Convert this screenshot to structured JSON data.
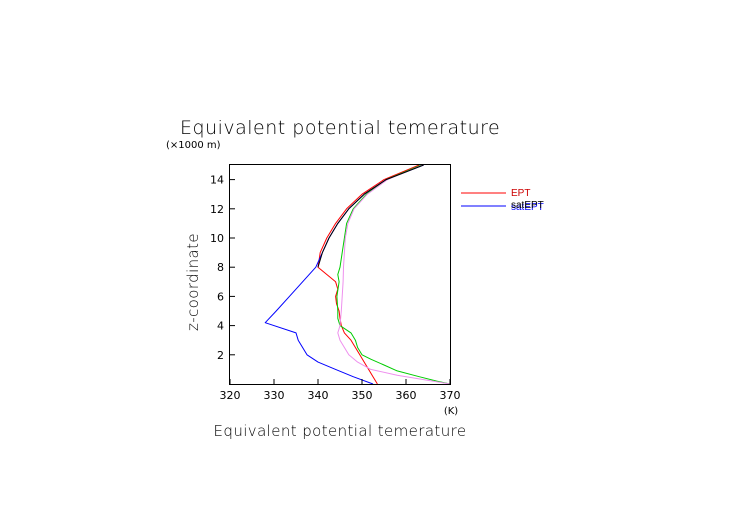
{
  "chart_data": {
    "type": "line",
    "title": "Equivalent potential temerature",
    "xlabel": "Equivalent potential temerature",
    "x_unit": "(K)",
    "ylabel": "z-coordinate",
    "y_unit": "(×1000 m)",
    "xlim": [
      320,
      370
    ],
    "ylim": [
      0,
      15
    ],
    "x_ticks": [
      320,
      330,
      340,
      350,
      360,
      370
    ],
    "y_ticks": [
      2,
      4,
      6,
      8,
      10,
      12,
      14
    ],
    "grid": false,
    "legend_placement": "right",
    "legend": [
      {
        "label": "EPT",
        "color": "#ff0000"
      },
      {
        "label": "satEPT",
        "color": "#0000ff"
      },
      {
        "label": "satEPT",
        "color": "#000000"
      }
    ],
    "series": [
      {
        "name": "EPT",
        "color": "#ff0000",
        "points": [
          [
            353.5,
            0.0
          ],
          [
            352.5,
            0.5
          ],
          [
            351.5,
            1.0
          ],
          [
            350.5,
            1.5
          ],
          [
            349.5,
            2.0
          ],
          [
            348.5,
            2.5
          ],
          [
            347.5,
            3.0
          ],
          [
            346.0,
            3.5
          ],
          [
            345.3,
            4.0
          ],
          [
            345.0,
            4.5
          ],
          [
            344.8,
            5.0
          ],
          [
            344.2,
            5.5
          ],
          [
            344.0,
            6.0
          ],
          [
            344.5,
            6.5
          ],
          [
            344.0,
            7.0
          ],
          [
            342.0,
            7.5
          ],
          [
            340.0,
            8.0
          ],
          [
            340.5,
            9.0
          ],
          [
            342.0,
            10.0
          ],
          [
            344.0,
            11.0
          ],
          [
            346.5,
            12.0
          ],
          [
            350.0,
            13.0
          ],
          [
            355.0,
            14.0
          ],
          [
            363.0,
            15.0
          ]
        ]
      },
      {
        "name": "satEPT",
        "color": "#0000ff",
        "points": [
          [
            352.5,
            0.0
          ],
          [
            348.0,
            0.5
          ],
          [
            344.0,
            1.0
          ],
          [
            340.0,
            1.5
          ],
          [
            337.5,
            2.0
          ],
          [
            336.5,
            2.5
          ],
          [
            335.5,
            3.0
          ],
          [
            335.0,
            3.5
          ],
          [
            328.0,
            4.2
          ],
          [
            330.5,
            5.0
          ],
          [
            333.5,
            6.0
          ],
          [
            336.5,
            7.0
          ],
          [
            339.5,
            8.0
          ],
          [
            341.0,
            9.0
          ],
          [
            342.5,
            10.0
          ],
          [
            344.5,
            11.0
          ],
          [
            347.0,
            12.0
          ],
          [
            350.5,
            13.0
          ],
          [
            355.5,
            14.0
          ],
          [
            364.0,
            15.0
          ]
        ]
      },
      {
        "name": "",
        "color": "#00cc00",
        "points": [
          [
            370.0,
            0.0
          ],
          [
            367.0,
            0.2
          ],
          [
            363.0,
            0.5
          ],
          [
            358.0,
            0.9
          ],
          [
            355.0,
            1.3
          ],
          [
            352.0,
            1.7
          ],
          [
            350.0,
            2.0
          ],
          [
            349.0,
            2.5
          ],
          [
            348.5,
            3.0
          ],
          [
            347.5,
            3.5
          ],
          [
            345.0,
            4.0
          ],
          [
            344.5,
            4.5
          ],
          [
            344.5,
            5.0
          ],
          [
            344.3,
            6.0
          ],
          [
            344.8,
            7.0
          ],
          [
            344.5,
            7.5
          ],
          [
            345.0,
            8.0
          ],
          [
            345.5,
            9.0
          ],
          [
            346.0,
            10.0
          ],
          [
            346.5,
            11.0
          ],
          [
            348.0,
            12.0
          ],
          [
            351.0,
            13.0
          ],
          [
            355.5,
            14.0
          ],
          [
            363.5,
            15.0
          ]
        ]
      },
      {
        "name": "",
        "color": "#ee90ee",
        "points": [
          [
            370.0,
            0.0
          ],
          [
            364.0,
            0.3
          ],
          [
            358.0,
            0.6
          ],
          [
            352.0,
            1.0
          ],
          [
            349.0,
            1.5
          ],
          [
            347.0,
            2.0
          ],
          [
            346.0,
            2.5
          ],
          [
            345.0,
            3.0
          ],
          [
            344.5,
            3.5
          ],
          [
            345.0,
            4.0
          ],
          [
            345.3,
            5.0
          ],
          [
            345.5,
            6.0
          ],
          [
            345.7,
            7.0
          ],
          [
            345.8,
            8.0
          ],
          [
            346.0,
            9.0
          ],
          [
            346.2,
            10.0
          ],
          [
            346.8,
            11.0
          ],
          [
            348.2,
            12.0
          ],
          [
            351.2,
            13.0
          ],
          [
            355.8,
            14.0
          ],
          [
            363.8,
            15.0
          ]
        ]
      },
      {
        "name": "",
        "color": "#000000",
        "points": [
          [
            340.0,
            8.0
          ],
          [
            341.0,
            9.0
          ],
          [
            342.5,
            10.0
          ],
          [
            344.5,
            11.0
          ],
          [
            347.0,
            12.0
          ],
          [
            350.5,
            13.0
          ],
          [
            355.5,
            14.0
          ],
          [
            364.0,
            15.0
          ]
        ]
      }
    ]
  }
}
